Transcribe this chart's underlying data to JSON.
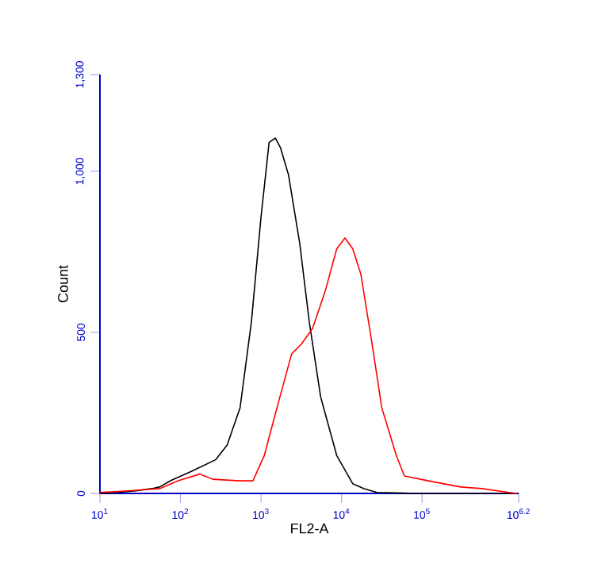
{
  "chart_data": {
    "type": "line",
    "xlabel": "FL2-A",
    "ylabel": "Count",
    "log": "x",
    "xlim": [
      10,
      1584893
    ],
    "ylim": [
      0,
      1300
    ],
    "xticks": [
      {
        "value": 10,
        "label": "10$^{1}$"
      },
      {
        "value": 100,
        "label": "10$^{2}$"
      },
      {
        "value": 1000,
        "label": "10$^{3}$"
      },
      {
        "value": 10000,
        "label": "10$^{4}$"
      },
      {
        "value": 100000,
        "label": "10$^{5}$"
      },
      {
        "value": 1584893,
        "label": "10$^{6.2}$"
      }
    ],
    "yticks": [
      0,
      500,
      {
        "value": 1000,
        "label": "1,000"
      },
      {
        "value": 1300,
        "label": "1,300"
      }
    ],
    "series": [
      {
        "color": "#000000",
        "x": [
          10,
          17,
          28,
          44,
          55,
          76,
          138,
          275,
          380,
          550,
          760,
          1000,
          1260,
          1510,
          1740,
          2190,
          3020,
          3980,
          5500,
          8710,
          13800,
          19000,
          27500,
          87000,
          1500000
        ],
        "values": [
          0,
          3,
          8,
          15,
          20,
          40,
          69,
          105,
          150,
          266,
          532,
          857,
          1089,
          1103,
          1074,
          990,
          778,
          532,
          300,
          118,
          30,
          15,
          3,
          0,
          0
        ]
      },
      {
        "color": "#ff0000",
        "x": [
          10,
          22,
          55,
          95,
          174,
          251,
          550,
          794,
          1100,
          1580,
          2400,
          3160,
          4370,
          6310,
          8710,
          11000,
          13800,
          17400,
          24000,
          31600,
          47900,
          60300,
          120000,
          302000,
          550000,
          1200000,
          1500000
        ],
        "values": [
          3,
          8,
          15,
          40,
          60,
          44,
          39,
          39,
          118,
          266,
          433,
          463,
          512,
          630,
          759,
          793,
          759,
          680,
          463,
          266,
          118,
          54,
          39,
          20,
          15,
          3,
          0
        ]
      }
    ]
  }
}
